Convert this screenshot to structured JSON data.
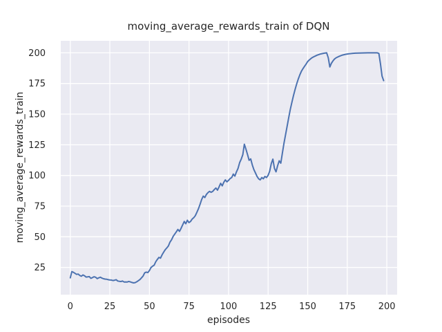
{
  "chart_data": {
    "type": "line",
    "title": "moving_average_rewards_train of DQN",
    "xlabel": "episodes",
    "ylabel": "moving_average_rewards_train",
    "xlim": [
      -6.0,
      206.5
    ],
    "ylim": [
      2.8,
      209.8
    ],
    "xticks": [
      0,
      25,
      50,
      75,
      100,
      125,
      150,
      175,
      200
    ],
    "yticks": [
      25,
      50,
      75,
      100,
      125,
      150,
      175,
      200
    ],
    "grid": true,
    "legend_position": "none",
    "colors": {
      "line": "#4C72B0",
      "plot_background": "#EAEAF2",
      "gridline": "#FFFFFF",
      "figure_background": "#FFFFFF",
      "text": "#262626"
    },
    "series": [
      {
        "name": "moving_average_rewards_train",
        "points": [
          [
            0,
            16.5
          ],
          [
            1,
            21.6
          ],
          [
            2,
            21.0
          ],
          [
            3,
            20.2
          ],
          [
            4,
            19.3
          ],
          [
            5,
            19.6
          ],
          [
            6,
            18.5
          ],
          [
            7,
            17.8
          ],
          [
            8,
            18.9
          ],
          [
            9,
            18.2
          ],
          [
            10,
            17.1
          ],
          [
            11,
            17.3
          ],
          [
            12,
            17.5
          ],
          [
            13,
            16.1
          ],
          [
            14,
            16.7
          ],
          [
            15,
            17.4
          ],
          [
            16,
            17.0
          ],
          [
            17,
            15.9
          ],
          [
            18,
            16.5
          ],
          [
            19,
            17.0
          ],
          [
            20,
            16.3
          ],
          [
            21,
            15.8
          ],
          [
            22,
            15.5
          ],
          [
            23,
            15.4
          ],
          [
            24,
            15.0
          ],
          [
            25,
            14.8
          ],
          [
            26,
            14.7
          ],
          [
            27,
            14.3
          ],
          [
            28,
            14.6
          ],
          [
            29,
            15.0
          ],
          [
            30,
            13.9
          ],
          [
            31,
            13.7
          ],
          [
            32,
            13.5
          ],
          [
            33,
            13.9
          ],
          [
            34,
            13.1
          ],
          [
            35,
            13.2
          ],
          [
            36,
            13.1
          ],
          [
            37,
            13.6
          ],
          [
            38,
            13.2
          ],
          [
            39,
            12.7
          ],
          [
            40,
            12.4
          ],
          [
            41,
            12.6
          ],
          [
            42,
            13.3
          ],
          [
            43,
            14.2
          ],
          [
            44,
            15.1
          ],
          [
            45,
            16.5
          ],
          [
            46,
            18.0
          ],
          [
            47,
            20.6
          ],
          [
            48,
            21.2
          ],
          [
            49,
            20.8
          ],
          [
            50,
            22.4
          ],
          [
            51,
            24.9
          ],
          [
            52,
            26.0
          ],
          [
            53,
            26.8
          ],
          [
            54,
            29.6
          ],
          [
            55,
            31.5
          ],
          [
            56,
            33.2
          ],
          [
            57,
            32.6
          ],
          [
            58,
            35.3
          ],
          [
            59,
            37.5
          ],
          [
            60,
            39.5
          ],
          [
            61,
            40.9
          ],
          [
            62,
            42.5
          ],
          [
            63,
            45.6
          ],
          [
            64,
            47.5
          ],
          [
            65,
            50.3
          ],
          [
            66,
            52.2
          ],
          [
            67,
            54.0
          ],
          [
            68,
            56.0
          ],
          [
            69,
            54.4
          ],
          [
            70,
            56.9
          ],
          [
            71,
            59.7
          ],
          [
            72,
            62.5
          ],
          [
            73,
            60.6
          ],
          [
            74,
            63.5
          ],
          [
            75,
            61.6
          ],
          [
            76,
            62.5
          ],
          [
            77,
            64.4
          ],
          [
            78,
            65.5
          ],
          [
            79,
            67.2
          ],
          [
            80,
            70.0
          ],
          [
            81,
            72.9
          ],
          [
            82,
            76.5
          ],
          [
            83,
            80.4
          ],
          [
            84,
            83.2
          ],
          [
            85,
            82.0
          ],
          [
            86,
            84.5
          ],
          [
            87,
            86.0
          ],
          [
            88,
            87.0
          ],
          [
            89,
            86.3
          ],
          [
            90,
            87.0
          ],
          [
            91,
            88.5
          ],
          [
            92,
            89.8
          ],
          [
            93,
            88.0
          ],
          [
            94,
            90.7
          ],
          [
            95,
            93.6
          ],
          [
            96,
            91.5
          ],
          [
            97,
            94.5
          ],
          [
            98,
            96.4
          ],
          [
            99,
            94.8
          ],
          [
            100,
            96.0
          ],
          [
            101,
            97.5
          ],
          [
            102,
            98.3
          ],
          [
            103,
            101.1
          ],
          [
            104,
            99.5
          ],
          [
            105,
            103.0
          ],
          [
            106,
            105.8
          ],
          [
            107,
            110.5
          ],
          [
            108,
            113.3
          ],
          [
            109,
            117.0
          ],
          [
            110,
            125.5
          ],
          [
            111,
            121.5
          ],
          [
            112,
            117.1
          ],
          [
            113,
            112.4
          ],
          [
            114,
            113.5
          ],
          [
            115,
            108.6
          ],
          [
            116,
            104.8
          ],
          [
            117,
            102.0
          ],
          [
            118,
            99.2
          ],
          [
            119,
            97.3
          ],
          [
            120,
            96.4
          ],
          [
            121,
            98.3
          ],
          [
            122,
            97.3
          ],
          [
            123,
            99.2
          ],
          [
            124,
            98.3
          ],
          [
            125,
            100.1
          ],
          [
            126,
            103.5
          ],
          [
            127,
            109.6
          ],
          [
            128,
            113.3
          ],
          [
            129,
            105.8
          ],
          [
            130,
            103.0
          ],
          [
            131,
            108.0
          ],
          [
            132,
            112.0
          ],
          [
            133,
            110.0
          ],
          [
            134,
            118.0
          ],
          [
            135,
            126.0
          ],
          [
            136,
            133.0
          ],
          [
            137,
            140.0
          ],
          [
            138,
            147.0
          ],
          [
            139,
            153.8
          ],
          [
            140,
            159.5
          ],
          [
            141,
            165.0
          ],
          [
            142,
            170.0
          ],
          [
            143,
            174.5
          ],
          [
            144,
            178.5
          ],
          [
            145,
            182.0
          ],
          [
            146,
            184.8
          ],
          [
            147,
            187.0
          ],
          [
            148,
            189.0
          ],
          [
            149,
            190.8
          ],
          [
            150,
            192.9
          ],
          [
            151,
            194.2
          ],
          [
            152,
            195.3
          ],
          [
            153,
            196.2
          ],
          [
            154,
            196.9
          ],
          [
            155,
            197.5
          ],
          [
            156,
            198.1
          ],
          [
            157,
            198.6
          ],
          [
            158,
            199.0
          ],
          [
            159,
            199.3
          ],
          [
            160,
            199.6
          ],
          [
            161,
            199.8
          ],
          [
            162,
            200.0
          ],
          [
            163,
            196.0
          ],
          [
            164,
            188.5
          ],
          [
            165,
            191.5
          ],
          [
            166,
            193.5
          ],
          [
            167,
            195.0
          ],
          [
            168,
            196.0
          ],
          [
            169,
            196.6
          ],
          [
            170,
            197.2
          ],
          [
            172,
            198.2
          ],
          [
            174,
            198.8
          ],
          [
            176,
            199.2
          ],
          [
            178,
            199.5
          ],
          [
            180,
            199.7
          ],
          [
            184,
            199.9
          ],
          [
            188,
            200.0
          ],
          [
            192,
            200.0
          ],
          [
            194,
            200.0
          ],
          [
            195,
            199.5
          ],
          [
            196,
            191.0
          ],
          [
            197,
            181.0
          ],
          [
            198,
            177.3
          ]
        ]
      }
    ]
  }
}
